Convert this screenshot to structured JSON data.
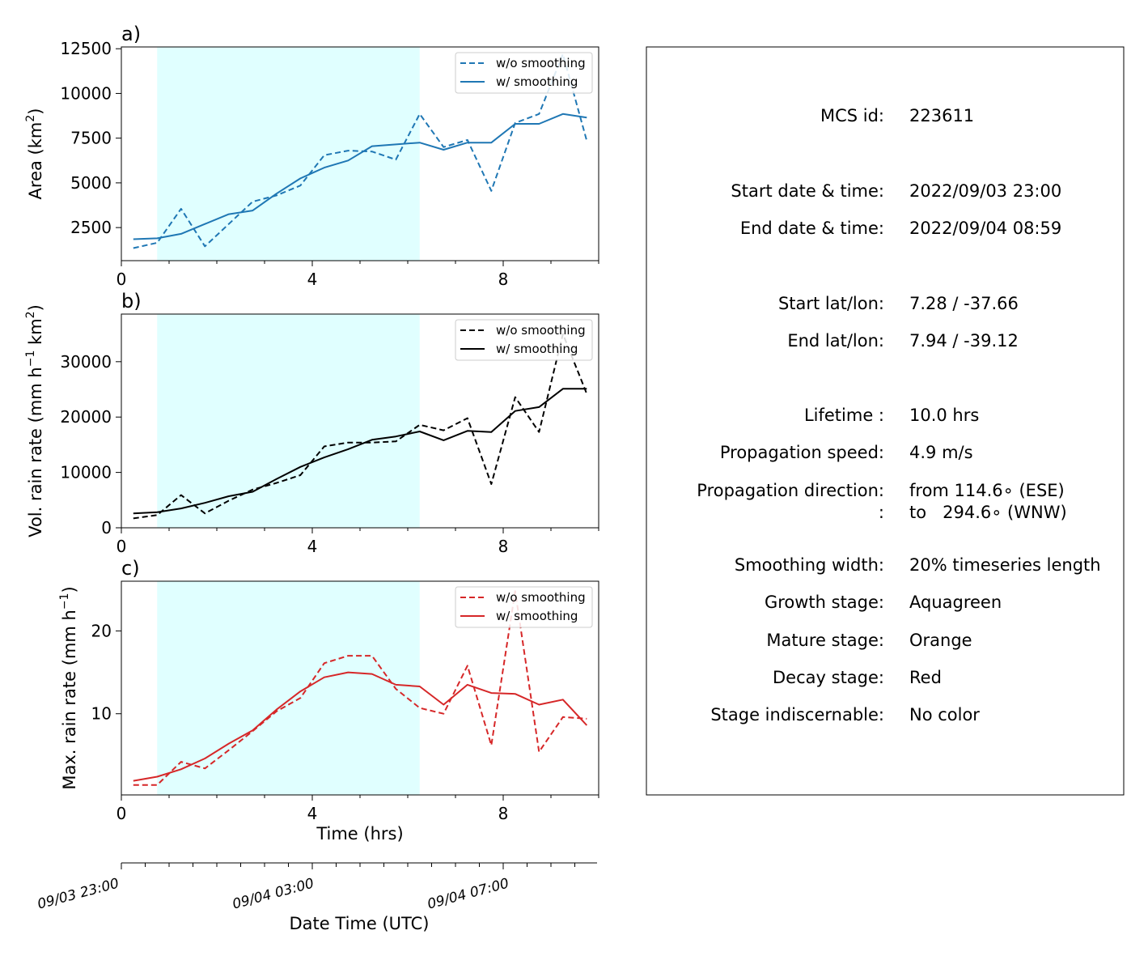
{
  "chart_data": [
    {
      "type": "line",
      "panel_label": "a)",
      "xlabel": "",
      "ylabel_main": "Area  (km",
      "ylabel_sup": "2",
      "ylabel_tail": ")",
      "x": [
        0.25,
        0.75,
        1.25,
        1.75,
        2.25,
        2.75,
        3.25,
        3.75,
        4.25,
        4.75,
        5.25,
        5.75,
        6.25,
        6.75,
        7.25,
        7.75,
        8.25,
        8.75,
        9.25,
        9.75
      ],
      "xlim": [
        0,
        10
      ],
      "ylim": [
        650,
        12600
      ],
      "xticks": [
        "0",
        "4",
        "8"
      ],
      "yticks": [
        "2500",
        "5000",
        "7500",
        "10000",
        "12500"
      ],
      "series": [
        {
          "name": "w/o smoothing",
          "style": "dashed",
          "color": "#1f77b4",
          "values": [
            1350,
            1650,
            3550,
            1450,
            2700,
            3950,
            4300,
            4850,
            6550,
            6800,
            6750,
            6300,
            8850,
            7000,
            7400,
            4550,
            8350,
            8850,
            12200,
            7350
          ]
        },
        {
          "name": "w/ smoothing",
          "style": "solid",
          "color": "#1f77b4",
          "values": [
            1850,
            1900,
            2150,
            2700,
            3250,
            3450,
            4400,
            5250,
            5850,
            6250,
            7050,
            7150,
            7250,
            6850,
            7250,
            7250,
            8300,
            8300,
            8850,
            8650
          ]
        }
      ],
      "shaded_x": [
        0.75,
        6.25
      ]
    },
    {
      "type": "line",
      "panel_label": "b)",
      "xlabel": "",
      "ylabel_main": "Vol. rain rate (mm h",
      "ylabel_sup1": "−1",
      "ylabel_mid": " km",
      "ylabel_sup2": "2",
      "ylabel_tail": ")",
      "x": [
        0.25,
        0.75,
        1.25,
        1.75,
        2.25,
        2.75,
        3.25,
        3.75,
        4.25,
        4.75,
        5.25,
        5.75,
        6.25,
        6.75,
        7.25,
        7.75,
        8.25,
        8.75,
        9.25,
        9.75
      ],
      "xlim": [
        0,
        10
      ],
      "ylim": [
        0,
        38600
      ],
      "xticks": [
        "0",
        "4",
        "8"
      ],
      "yticks": [
        "0",
        "10000",
        "20000",
        "30000"
      ],
      "series": [
        {
          "name": "w/o smoothing",
          "style": "dashed",
          "color": "#000000",
          "values": [
            1700,
            2300,
            5900,
            2600,
            4900,
            6900,
            8100,
            9500,
            14700,
            15400,
            15400,
            15600,
            18600,
            17600,
            19800,
            7900,
            23600,
            17300,
            35000,
            24200
          ]
        },
        {
          "name": "w/ smoothing",
          "style": "solid",
          "color": "#000000",
          "values": [
            2600,
            2800,
            3500,
            4500,
            5700,
            6500,
            8800,
            11000,
            12700,
            14200,
            15900,
            16500,
            17400,
            15800,
            17500,
            17300,
            21100,
            21800,
            25100,
            25100
          ]
        }
      ],
      "shaded_x": [
        0.75,
        6.25
      ]
    },
    {
      "type": "line",
      "panel_label": "c)",
      "xlabel": "Time (hrs)",
      "ylabel_main": "Max. rain rate  (mm h",
      "ylabel_sup": "−1",
      "ylabel_tail": ")",
      "x": [
        0.25,
        0.75,
        1.25,
        1.75,
        2.25,
        2.75,
        3.25,
        3.75,
        4.25,
        4.75,
        5.25,
        5.75,
        6.25,
        6.75,
        7.25,
        7.75,
        8.25,
        8.75,
        9.25,
        9.75
      ],
      "xlim": [
        0,
        10
      ],
      "ylim": [
        0.2,
        26
      ],
      "xticks": [
        "0",
        "4",
        "8"
      ],
      "yticks": [
        "10",
        "20"
      ],
      "series": [
        {
          "name": "w/o smoothing",
          "style": "dashed",
          "color": "#d62728",
          "values": [
            1.4,
            1.4,
            4.2,
            3.4,
            5.6,
            7.9,
            10.3,
            11.9,
            16.1,
            17.0,
            17.0,
            13.0,
            10.7,
            10.0,
            15.8,
            6.2,
            24.8,
            5.4,
            9.6,
            9.4
          ]
        },
        {
          "name": "w/ smoothing",
          "style": "solid",
          "color": "#d62728",
          "values": [
            1.9,
            2.4,
            3.3,
            4.6,
            6.4,
            8.0,
            10.5,
            12.7,
            14.4,
            15.0,
            14.8,
            13.5,
            13.3,
            11.1,
            13.5,
            12.5,
            12.4,
            11.1,
            11.7,
            8.6
          ]
        }
      ],
      "shaded_x": [
        0.75,
        6.25
      ]
    }
  ],
  "datetime_axis": {
    "label": "Date Time (UTC)",
    "ticks": [
      {
        "hour": 0,
        "label": "09/03 23:00"
      },
      {
        "hour": 4,
        "label": "09/04 03:00"
      },
      {
        "hour": 8,
        "label": "09/04 07:00"
      }
    ]
  },
  "info_panel": {
    "rows": [
      {
        "key": "MCS id:",
        "value": "223611"
      },
      {
        "key": "Start date & time:",
        "value": "2022/09/03 23:00"
      },
      {
        "key": "End date & time:",
        "value": "2022/09/04 08:59"
      },
      {
        "key": "Start lat/lon:",
        "value": "7.28 / -37.66"
      },
      {
        "key": "End lat/lon:",
        "value": "7.94 / -39.12"
      },
      {
        "key": "Lifetime :",
        "value": "10.0 hrs"
      },
      {
        "key": "Propagation speed:",
        "value": "4.9 m/s"
      },
      {
        "key": "Propagation direction:",
        "value": "from 114.6∘ (ESE)"
      },
      {
        "key": ":",
        "value": "to   294.6∘ (WNW)"
      },
      {
        "key": "Smoothing width:",
        "value": "20% timeseries length"
      },
      {
        "key": "Growth stage:",
        "value": "Aquagreen"
      },
      {
        "key": "Mature stage:",
        "value": "Orange"
      },
      {
        "key": "Decay stage:",
        "value": "Red"
      },
      {
        "key": "Stage indiscernable:",
        "value": "No color"
      }
    ]
  },
  "colors": {
    "shade": "#e0ffff",
    "blue": "#1f77b4",
    "black": "#000000",
    "red": "#d62728"
  }
}
